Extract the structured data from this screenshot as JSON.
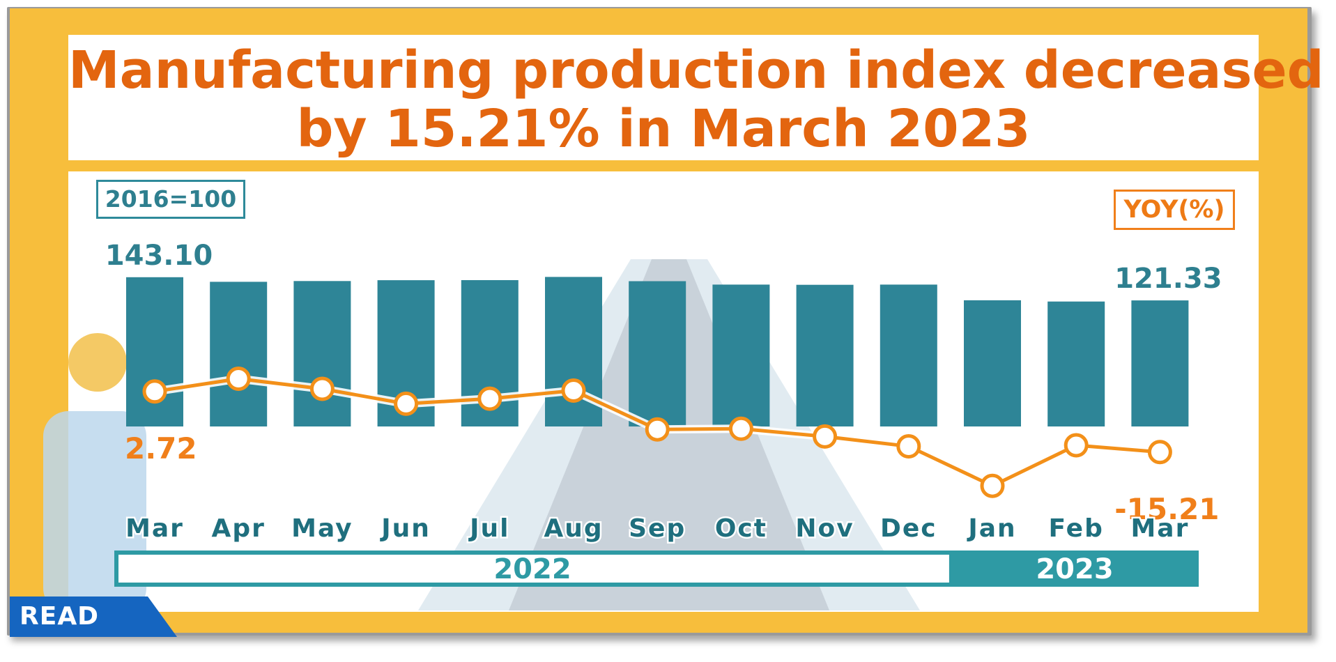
{
  "title": {
    "line1": "Manufacturing production index decreased",
    "line2": "by 15.21% in  March 2023"
  },
  "badges": {
    "base": "2016=100",
    "yoy": "YOY(%)"
  },
  "read_label": "READ",
  "colors": {
    "frame": "#f7be3c",
    "title": "#e3650f",
    "bar": "#2e8597",
    "line": "#f39019",
    "yoy_label": "#f07f1a",
    "bar_label": "#2e7f8f",
    "year_bar": "#2e9aa4"
  },
  "chart_data": {
    "type": "bar",
    "categories": [
      "Mar",
      "Apr",
      "May",
      "Jun",
      "Jul",
      "Aug",
      "Sep",
      "Oct",
      "Nov",
      "Dec",
      "Jan",
      "Feb",
      "Mar"
    ],
    "year_groups": [
      {
        "label": "2022",
        "span": 10
      },
      {
        "label": "2023",
        "span": 3
      }
    ],
    "series": [
      {
        "name": "2016=100",
        "type": "bar",
        "values": [
          143.1,
          138.8,
          139.5,
          140.3,
          140.4,
          143.4,
          139.4,
          136.2,
          136.0,
          136.2,
          121.5,
          120.3,
          121.33
        ]
      },
      {
        "name": "YOY(%)",
        "type": "line",
        "values": [
          2.72,
          6.5,
          3.5,
          -0.9,
          0.6,
          3.0,
          -8.5,
          -8.3,
          -10.6,
          -13.5,
          -25.2,
          -13.2,
          -15.21
        ]
      }
    ],
    "data_labels": [
      {
        "series": 0,
        "index": 0,
        "text": "143.10"
      },
      {
        "series": 0,
        "index": 12,
        "text": "121.33"
      },
      {
        "series": 1,
        "index": 0,
        "text": "2.72"
      },
      {
        "series": 1,
        "index": 12,
        "text": "-15.21"
      }
    ]
  }
}
